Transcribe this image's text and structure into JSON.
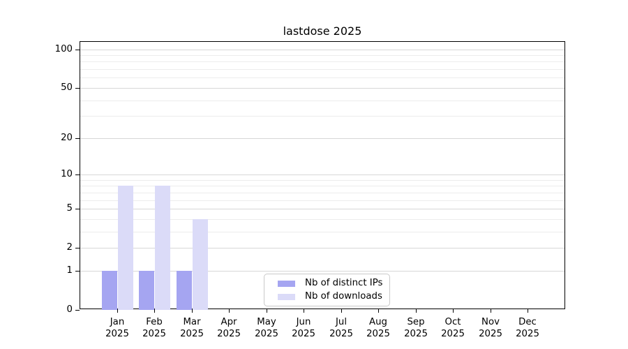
{
  "figure_title": "lastdose 2025",
  "colors": {
    "distinct_ips_bar": "#a5a5f1",
    "downloads_bar": "#dbdbf8",
    "major_gridline": "#d7d7d7",
    "minor_gridline": "#ececec",
    "axis_spine": "#000000",
    "legend_border": "#c9c9c9",
    "text": "#000000"
  },
  "chart_data": {
    "type": "bar",
    "title": "lastdose 2025",
    "xlabel": "",
    "ylabel": "",
    "y_scale": "log10(1+x)",
    "ylim": [
      0,
      114
    ],
    "grid": true,
    "legend_position": "lower center-left inside plot",
    "categories": [
      "Jan 2025",
      "Feb 2025",
      "Mar 2025",
      "Apr 2025",
      "May 2025",
      "Jun 2025",
      "Jul 2025",
      "Aug 2025",
      "Sep 2025",
      "Oct 2025",
      "Nov 2025",
      "Dec 2025"
    ],
    "x_tick_labels": [
      [
        "Jan",
        "2025"
      ],
      [
        "Feb",
        "2025"
      ],
      [
        "Mar",
        "2025"
      ],
      [
        "Apr",
        "2025"
      ],
      [
        "May",
        "2025"
      ],
      [
        "Jun",
        "2025"
      ],
      [
        "Jul",
        "2025"
      ],
      [
        "Aug",
        "2025"
      ],
      [
        "Sep",
        "2025"
      ],
      [
        "Oct",
        "2025"
      ],
      [
        "Nov",
        "2025"
      ],
      [
        "Dec",
        "2025"
      ]
    ],
    "y_ticks": [
      0,
      1,
      2,
      5,
      10,
      20,
      50,
      100
    ],
    "y_tick_labels": [
      "0",
      "1",
      "2",
      "5",
      "10",
      "20",
      "50",
      "100"
    ],
    "y_minor_gridlines": [
      3,
      4,
      6,
      7,
      8,
      9,
      30,
      40,
      60,
      70,
      80,
      90
    ],
    "series": [
      {
        "name": "Nb of distinct IPs",
        "color": "#a5a5f1",
        "values": [
          1,
          1,
          1,
          0,
          0,
          0,
          0,
          0,
          0,
          0,
          0,
          0
        ]
      },
      {
        "name": "Nb of downloads",
        "color": "#dbdbf8",
        "values": [
          8,
          8,
          4,
          0,
          0,
          0,
          0,
          0,
          0,
          0,
          0,
          0
        ]
      }
    ]
  }
}
